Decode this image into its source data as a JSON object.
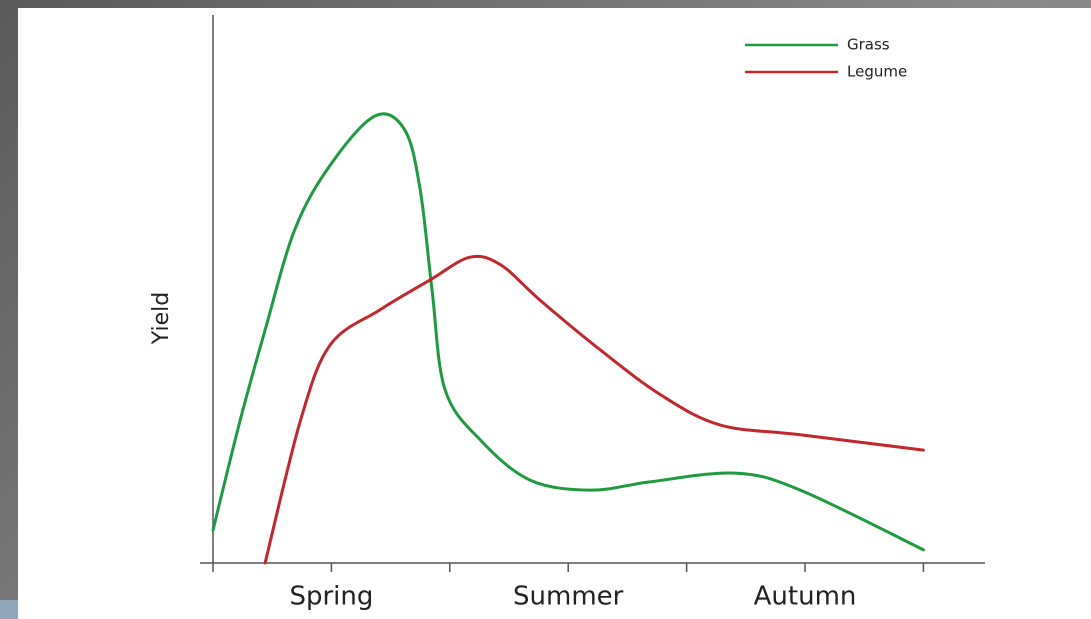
{
  "chart_data": {
    "type": "line",
    "categories": [
      null,
      "Spring",
      null,
      "Summer",
      null,
      "Autumn",
      null
    ],
    "xlim": [
      0,
      6.52
    ],
    "ylim": [
      0,
      100
    ],
    "ylabel": "Yield",
    "legend": "upper right",
    "series": [
      {
        "name": "Grass",
        "color": "#1f9a40",
        "x": [
          0,
          0.23,
          0.44,
          0.69,
          0.99,
          1.37,
          1.62,
          1.75,
          1.85,
          1.96,
          2.26,
          2.68,
          3.19,
          3.69,
          4.41,
          4.96,
          6.0
        ],
        "values": [
          6.0,
          26.1,
          42.5,
          60.8,
          72.6,
          81.6,
          79.0,
          68.1,
          49.8,
          31.6,
          22.4,
          15.1,
          13.3,
          14.8,
          16.4,
          13.3,
          2.4
        ]
      },
      {
        "name": "Legume",
        "color": "#c0282e",
        "x": [
          0.44,
          0.74,
          0.99,
          1.41,
          1.83,
          2.17,
          2.43,
          2.76,
          3.27,
          3.78,
          4.28,
          4.96,
          6.0
        ],
        "values": [
          0,
          26.1,
          39.8,
          46.2,
          51.6,
          55.8,
          54.4,
          48.0,
          38.9,
          30.7,
          25.2,
          23.4,
          20.6
        ]
      }
    ]
  }
}
